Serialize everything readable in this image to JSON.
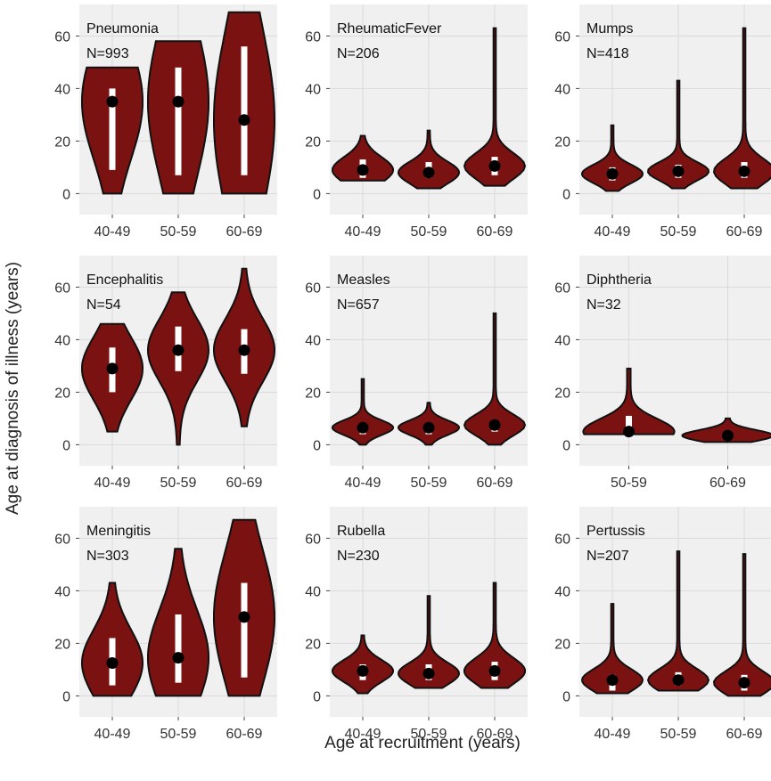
{
  "chart_data": {
    "type": "violin",
    "xlabel": "Age at recruitment (years)",
    "ylabel": "Age at diagnosis of illness (years)",
    "ylim": [
      -8,
      72
    ],
    "yticks": [
      0,
      20,
      40,
      60
    ],
    "grid": true,
    "colors": {
      "violin_fill": "#7a1212",
      "violin_stroke": "#111111",
      "box": "#ffffff",
      "median": "#000000",
      "panel_bg": "#f0f0f0",
      "grid": "#ffffff"
    },
    "panels": [
      {
        "disease": "Pneumonia",
        "n_label": "N=993",
        "categories": [
          "40-49",
          "50-59",
          "60-69"
        ],
        "groups": [
          {
            "label": "40-49",
            "min": 0,
            "max": 48,
            "q1": 9,
            "q3": 40,
            "median": 35
          },
          {
            "label": "50-59",
            "min": 0,
            "max": 58,
            "q1": 7,
            "q3": 48,
            "median": 35
          },
          {
            "label": "60-69",
            "min": 0,
            "max": 69,
            "q1": 7,
            "q3": 56,
            "median": 28
          }
        ]
      },
      {
        "disease": "RheumaticFever",
        "n_label": "N=206",
        "categories": [
          "40-49",
          "50-59",
          "60-69"
        ],
        "groups": [
          {
            "label": "40-49",
            "min": 5,
            "max": 22,
            "q1": 6,
            "q3": 13,
            "median": 9
          },
          {
            "label": "50-59",
            "min": 2,
            "max": 24,
            "q1": 6,
            "q3": 12,
            "median": 8
          },
          {
            "label": "60-69",
            "min": 3,
            "max": 63,
            "q1": 7,
            "q3": 14,
            "median": 10.5
          }
        ]
      },
      {
        "disease": "Mumps",
        "n_label": "N=418",
        "categories": [
          "40-49",
          "50-59",
          "60-69"
        ],
        "groups": [
          {
            "label": "40-49",
            "min": 1,
            "max": 26,
            "q1": 5,
            "q3": 10,
            "median": 7.5
          },
          {
            "label": "50-59",
            "min": 2,
            "max": 43,
            "q1": 6,
            "q3": 11,
            "median": 8.5
          },
          {
            "label": "60-69",
            "min": 2,
            "max": 63,
            "q1": 6,
            "q3": 12,
            "median": 8.5
          }
        ]
      },
      {
        "disease": "Encephalitis",
        "n_label": "N=54",
        "categories": [
          "40-49",
          "50-59",
          "60-69"
        ],
        "groups": [
          {
            "label": "40-49",
            "min": 5,
            "max": 46,
            "q1": 20,
            "q3": 37,
            "median": 29
          },
          {
            "label": "50-59",
            "min": 0,
            "max": 58,
            "q1": 28,
            "q3": 45,
            "median": 36
          },
          {
            "label": "60-69",
            "min": 7,
            "max": 67,
            "q1": 27,
            "q3": 44,
            "median": 36
          }
        ]
      },
      {
        "disease": "Measles",
        "n_label": "N=657",
        "categories": [
          "40-49",
          "50-59",
          "60-69"
        ],
        "groups": [
          {
            "label": "40-49",
            "min": 0,
            "max": 25,
            "q1": 4,
            "q3": 8,
            "median": 6.5
          },
          {
            "label": "50-59",
            "min": 0,
            "max": 16,
            "q1": 4,
            "q3": 8,
            "median": 6.5
          },
          {
            "label": "60-69",
            "min": 0,
            "max": 50,
            "q1": 5,
            "q3": 9,
            "median": 7.5
          }
        ]
      },
      {
        "disease": "Diphtheria",
        "n_label": "N=32",
        "categories": [
          "50-59",
          "60-69"
        ],
        "groups": [
          {
            "label": "50-59",
            "min": 4,
            "max": 29,
            "q1": 4,
            "q3": 11,
            "median": 5
          },
          {
            "label": "60-69",
            "min": 1,
            "max": 10,
            "q1": 2,
            "q3": 5,
            "median": 3.5
          }
        ]
      },
      {
        "disease": "Meningitis",
        "n_label": "N=303",
        "categories": [
          "40-49",
          "50-59",
          "60-69"
        ],
        "groups": [
          {
            "label": "40-49",
            "min": 0,
            "max": 43,
            "q1": 4,
            "q3": 22,
            "median": 12.5
          },
          {
            "label": "50-59",
            "min": 0,
            "max": 56,
            "q1": 5,
            "q3": 31,
            "median": 14.5
          },
          {
            "label": "60-69",
            "min": 0,
            "max": 67,
            "q1": 7,
            "q3": 43,
            "median": 30
          }
        ]
      },
      {
        "disease": "Rubella",
        "n_label": "N=230",
        "categories": [
          "40-49",
          "50-59",
          "60-69"
        ],
        "groups": [
          {
            "label": "40-49",
            "min": 1,
            "max": 23,
            "q1": 6,
            "q3": 12,
            "median": 9.5
          },
          {
            "label": "50-59",
            "min": 3,
            "max": 38,
            "q1": 6,
            "q3": 12,
            "median": 8.5
          },
          {
            "label": "60-69",
            "min": 3,
            "max": 43,
            "q1": 6,
            "q3": 13,
            "median": 9.5
          }
        ]
      },
      {
        "disease": "Pertussis",
        "n_label": "N=207",
        "categories": [
          "40-49",
          "50-59",
          "60-69"
        ],
        "groups": [
          {
            "label": "40-49",
            "min": 1,
            "max": 35,
            "q1": 2,
            "q3": 8,
            "median": 6
          },
          {
            "label": "50-59",
            "min": 2,
            "max": 55,
            "q1": 4,
            "q3": 9,
            "median": 6
          },
          {
            "label": "60-69",
            "min": 0,
            "max": 54,
            "q1": 2,
            "q3": 8,
            "median": 5
          }
        ]
      }
    ]
  }
}
